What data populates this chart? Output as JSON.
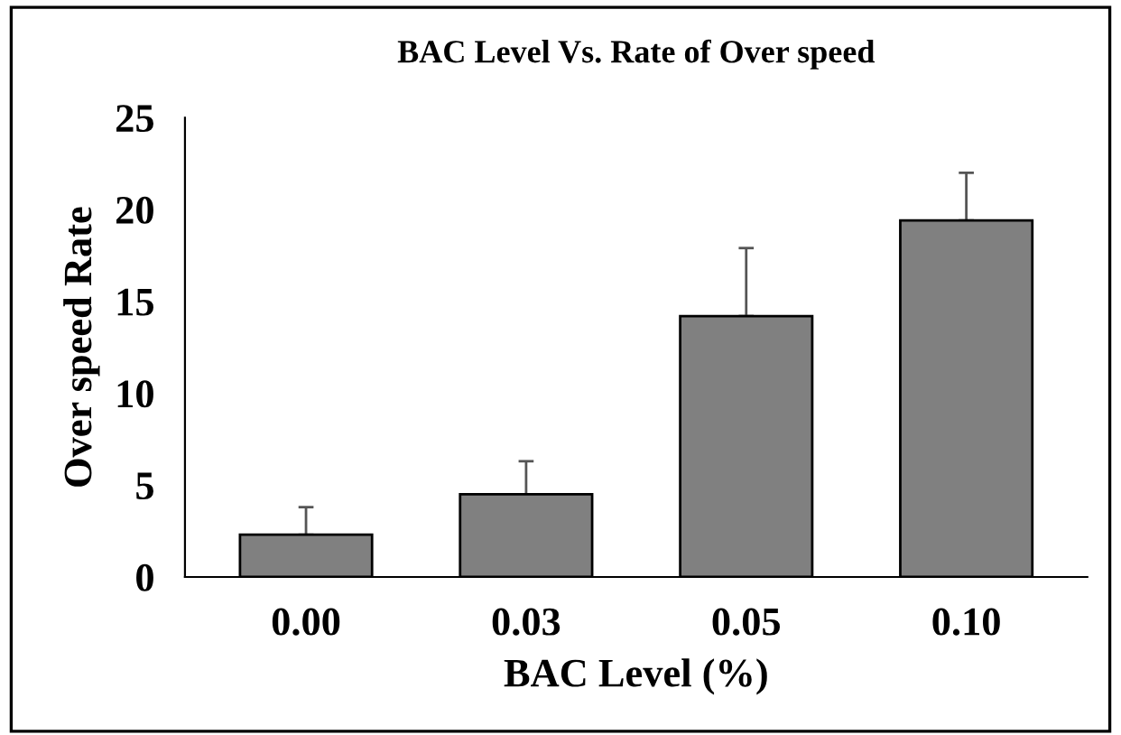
{
  "chart_data": {
    "type": "bar",
    "title": "BAC Level Vs. Rate of Over speed",
    "xlabel": "BAC Level (%)",
    "ylabel": "Over speed Rate",
    "categories": [
      "0.00",
      "0.03",
      "0.05",
      "0.10"
    ],
    "values": [
      2.3,
      4.5,
      14.2,
      19.4
    ],
    "errors": [
      [
        2.3,
        3.8
      ],
      [
        4.5,
        6.3
      ],
      [
        14.2,
        17.9
      ],
      [
        19.4,
        22.0
      ]
    ],
    "color": "#808080",
    "ylim": [
      0,
      25
    ],
    "yticks": [
      0,
      5,
      10,
      15,
      20,
      25
    ],
    "grid": false,
    "legend": false
  }
}
